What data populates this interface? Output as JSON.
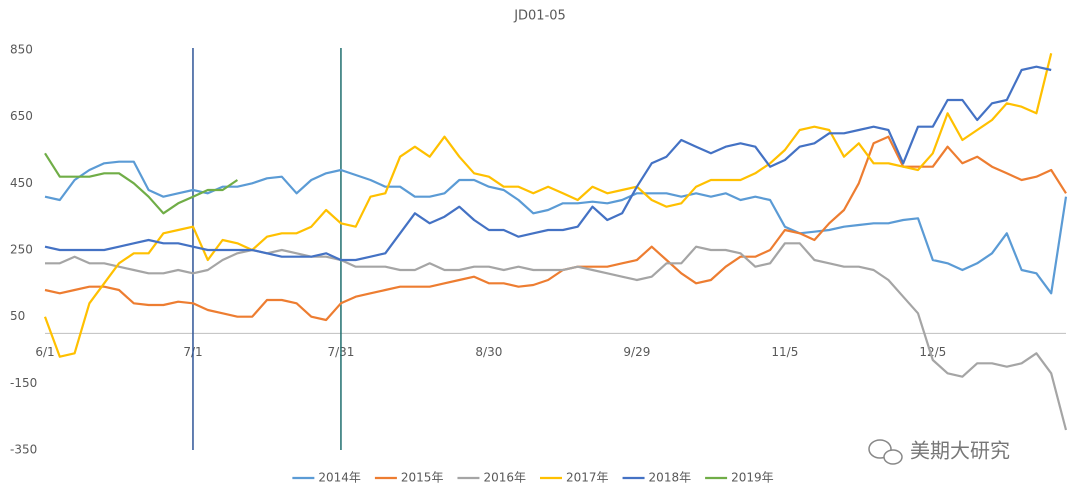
{
  "chart_data": {
    "type": "line",
    "title": "JD01-05",
    "categories": [
      "6/1",
      null,
      null,
      null,
      null,
      null,
      null,
      null,
      null,
      null,
      "7/1",
      null,
      null,
      null,
      null,
      null,
      null,
      null,
      null,
      null,
      "7/31",
      null,
      null,
      null,
      null,
      null,
      null,
      null,
      null,
      null,
      "8/30",
      null,
      null,
      null,
      null,
      null,
      null,
      null,
      null,
      null,
      "9/29",
      null,
      null,
      null,
      null,
      null,
      null,
      null,
      null,
      null,
      "11/5",
      null,
      null,
      null,
      null,
      null,
      null,
      null,
      null,
      null,
      "12/5",
      null,
      null,
      null,
      null,
      null,
      null,
      null,
      null,
      null
    ],
    "ylim": [
      -350,
      850
    ],
    "yticks": [
      -350,
      -150,
      50,
      250,
      450,
      650,
      850
    ],
    "grid": false,
    "legend": "bottom",
    "vlines": [
      {
        "index": 10,
        "color": "#2f5597"
      },
      {
        "index": 20,
        "color": "#1f6f6f"
      }
    ],
    "watermark": "美期大研究",
    "series": [
      {
        "name": "2014年",
        "color": "#5b9bd5",
        "values": [
          410,
          400,
          460,
          490,
          510,
          515,
          515,
          430,
          410,
          420,
          430,
          420,
          440,
          440,
          450,
          465,
          470,
          420,
          460,
          480,
          490,
          475,
          460,
          440,
          440,
          410,
          410,
          420,
          460,
          460,
          440,
          430,
          400,
          360,
          370,
          390,
          390,
          395,
          390,
          400,
          420,
          420,
          420,
          410,
          420,
          410,
          420,
          400,
          410,
          400,
          320,
          300,
          305,
          310,
          320,
          325,
          330,
          330,
          340,
          345,
          220,
          210,
          190,
          210,
          240,
          300,
          190,
          180,
          120,
          410
        ]
      },
      {
        "name": "2015年",
        "color": "#ed7d31",
        "values": [
          130,
          120,
          130,
          140,
          140,
          130,
          90,
          85,
          85,
          95,
          90,
          70,
          60,
          50,
          50,
          100,
          100,
          90,
          50,
          40,
          90,
          110,
          120,
          130,
          140,
          140,
          140,
          150,
          160,
          170,
          150,
          150,
          140,
          145,
          160,
          190,
          200,
          200,
          200,
          210,
          220,
          260,
          220,
          180,
          150,
          160,
          200,
          230,
          230,
          250,
          310,
          300,
          280,
          330,
          370,
          450,
          570,
          590,
          500,
          500,
          500,
          560,
          510,
          530,
          500,
          480,
          460,
          470,
          490,
          420
        ]
      },
      {
        "name": "2016年",
        "color": "#a5a5a5",
        "values": [
          210,
          210,
          230,
          210,
          210,
          200,
          190,
          180,
          180,
          190,
          180,
          190,
          220,
          240,
          250,
          240,
          250,
          240,
          230,
          230,
          220,
          200,
          200,
          200,
          190,
          190,
          210,
          190,
          190,
          200,
          200,
          190,
          200,
          190,
          190,
          190,
          200,
          190,
          180,
          170,
          160,
          170,
          210,
          210,
          260,
          250,
          250,
          240,
          200,
          210,
          270,
          270,
          220,
          210,
          200,
          200,
          190,
          160,
          110,
          60,
          -80,
          -120,
          -130,
          -90,
          -90,
          -100,
          -90,
          -60,
          -120,
          -290
        ]
      },
      {
        "name": "2017年",
        "color": "#ffc000",
        "values": [
          50,
          -70,
          -60,
          90,
          150,
          210,
          240,
          240,
          300,
          310,
          320,
          220,
          280,
          270,
          250,
          290,
          300,
          300,
          320,
          370,
          330,
          320,
          410,
          420,
          530,
          560,
          530,
          590,
          530,
          480,
          470,
          440,
          440,
          420,
          440,
          420,
          400,
          440,
          420,
          430,
          440,
          400,
          380,
          390,
          440,
          460,
          460,
          460,
          480,
          510,
          550,
          610,
          620,
          610,
          530,
          570,
          510,
          510,
          500,
          490,
          540,
          660,
          580,
          610,
          640,
          690,
          680,
          660,
          840,
          null
        ]
      },
      {
        "name": "2018年",
        "color": "#4472c4",
        "values": [
          260,
          250,
          250,
          250,
          250,
          260,
          270,
          280,
          270,
          270,
          260,
          250,
          250,
          250,
          250,
          240,
          230,
          230,
          230,
          240,
          220,
          220,
          230,
          240,
          300,
          360,
          330,
          350,
          380,
          340,
          310,
          310,
          290,
          300,
          310,
          310,
          320,
          380,
          340,
          360,
          440,
          510,
          530,
          580,
          560,
          540,
          560,
          570,
          560,
          500,
          520,
          560,
          570,
          600,
          600,
          610,
          620,
          610,
          510,
          620,
          620,
          700,
          700,
          640,
          690,
          700,
          790,
          800,
          790,
          null
        ]
      },
      {
        "name": "2019年",
        "color": "#70ad47",
        "values": [
          540,
          470,
          470,
          470,
          480,
          480,
          450,
          410,
          360,
          390,
          410,
          430,
          430,
          460,
          null,
          null,
          null,
          null,
          null,
          null,
          null,
          null,
          null,
          null,
          null,
          null,
          null,
          null,
          null,
          null,
          null,
          null,
          null,
          null,
          null,
          null,
          null,
          null,
          null,
          null,
          null,
          null,
          null,
          null,
          null,
          null,
          null,
          null,
          null,
          null,
          null,
          null,
          null,
          null,
          null,
          null,
          null,
          null,
          null,
          null,
          null,
          null,
          null,
          null,
          null,
          null,
          null,
          null,
          null,
          null
        ]
      }
    ]
  }
}
